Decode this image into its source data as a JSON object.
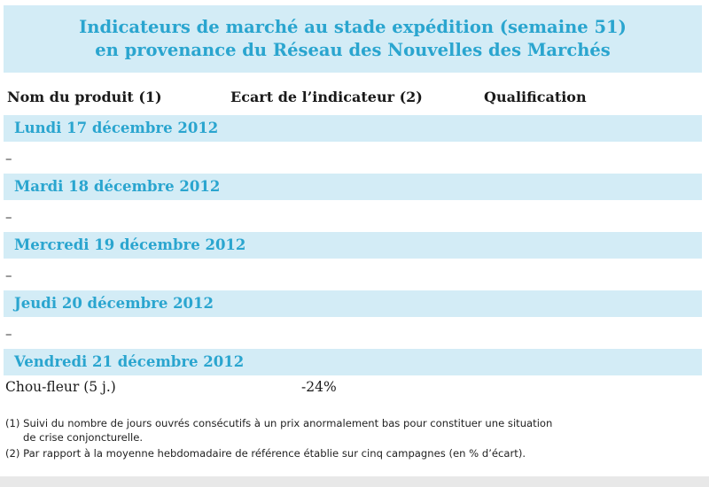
{
  "title": {
    "line1": "Indicateurs de marché au stade expédition (semaine 51)",
    "line2": "en provenance du Réseau des Nouvelles des Marchés"
  },
  "columns": {
    "product": "Nom du produit (1)",
    "gap": "Ecart de l’indicateur (2)",
    "qualification": "Qualification"
  },
  "days": [
    {
      "label": "Lundi 17 décembre 2012",
      "entry": "–"
    },
    {
      "label": "Mardi 18 décembre 2012",
      "entry": "–"
    },
    {
      "label": "Mercredi 19 décembre 2012",
      "entry": "–"
    },
    {
      "label": "Jeudi 20 décembre 2012",
      "entry": "–"
    },
    {
      "label": "Vendredi 21 décembre 2012"
    }
  ],
  "product_row": {
    "name": "Chou-fleur (5 j.)",
    "gap": "-24%",
    "qualification": ""
  },
  "footnotes": {
    "note1_line1": "(1) Suivi du nombre de jours ouvrés consécutifs à un prix anormalement bas pour constituer une situation",
    "note1_line2": "de crise conjoncturelle.",
    "note2": "(2) Par rapport à la moyenne hebdomadaire de référence établie sur cinq campagnes (en % d’écart)."
  },
  "colors": {
    "band_background": "#d3ecf6",
    "accent_text": "#2aa5cf"
  }
}
